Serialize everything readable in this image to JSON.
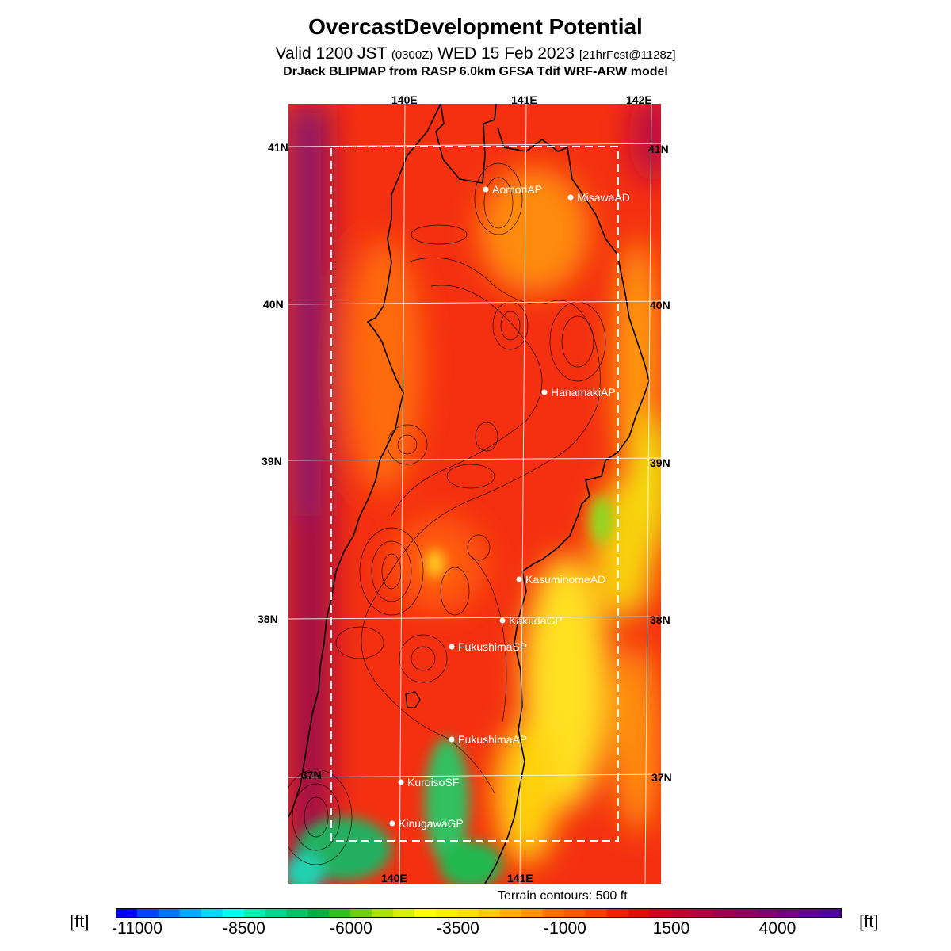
{
  "header": {
    "title": "OvercastDevelopment Potential",
    "valid_prefix": "Valid 1200 JST",
    "zulu": "(0300Z)",
    "date": "WED 15 Feb 2023",
    "forecast": "[21hrFcst@1128z]",
    "model": "DrJack BLIPMAP from RASP 6.0km GFSA Tdif WRF-ARW model"
  },
  "map": {
    "lon_top": [
      "140E",
      "141E",
      "142E"
    ],
    "lon_bottom": [
      "140E",
      "141E"
    ],
    "lat_left": [
      "41N",
      "40N",
      "39N",
      "38N",
      "37N"
    ],
    "lat_right": [
      "41N",
      "40N",
      "39N",
      "38N",
      "37N"
    ],
    "stations": [
      {
        "name": "AomoriAP"
      },
      {
        "name": "MisawaAD"
      },
      {
        "name": "HanamakiAP"
      },
      {
        "name": "KasuminomeAD"
      },
      {
        "name": "KakudaGP"
      },
      {
        "name": "FukushimaSP"
      },
      {
        "name": "FukushimaAP"
      },
      {
        "name": "KuroisoSF"
      },
      {
        "name": "KinugawaGP"
      }
    ],
    "terrain_caption": "Terrain contours: 500 ft"
  },
  "legend": {
    "unit_left": "[ft]",
    "unit_right": "[ft]",
    "ticks": [
      "-11000",
      "-8500",
      "-6000",
      "-3500",
      "-1000",
      "1500",
      "4000"
    ],
    "colors": [
      "#0000ff",
      "#0044ff",
      "#0077ff",
      "#00aaff",
      "#00d6ff",
      "#00ffee",
      "#00f0b0",
      "#00d890",
      "#00c468",
      "#00b040",
      "#30c020",
      "#70d010",
      "#a8e000",
      "#d8f000",
      "#ffff00",
      "#fff000",
      "#ffe000",
      "#ffc800",
      "#ffaa00",
      "#ff9000",
      "#ff7000",
      "#ff5a00",
      "#ff4000",
      "#f02000",
      "#e01000",
      "#d00020",
      "#c00030",
      "#b00040",
      "#a00050",
      "#900060",
      "#800070",
      "#700080",
      "#600090",
      "#5000a0"
    ]
  }
}
